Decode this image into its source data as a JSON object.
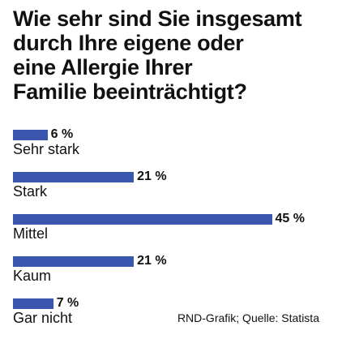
{
  "chart_data": {
    "type": "bar",
    "orientation": "horizontal",
    "title": "Wie sehr sind Sie insgesamt\ndurch Ihre eigene oder\neine Allergie Ihrer\nFamilie beeinträchtigt?",
    "categories": [
      "Sehr stark",
      "Stark",
      "Mittel",
      "Kaum",
      "Gar nicht"
    ],
    "values": [
      6,
      21,
      45,
      21,
      7
    ],
    "value_labels": [
      "6 %",
      "21 %",
      "45 %",
      "21 %",
      "7 %"
    ],
    "unit": "%",
    "bar_color": "#3a56ad",
    "grid": false
  },
  "source": "RND-Grafik; Quelle: Statista"
}
